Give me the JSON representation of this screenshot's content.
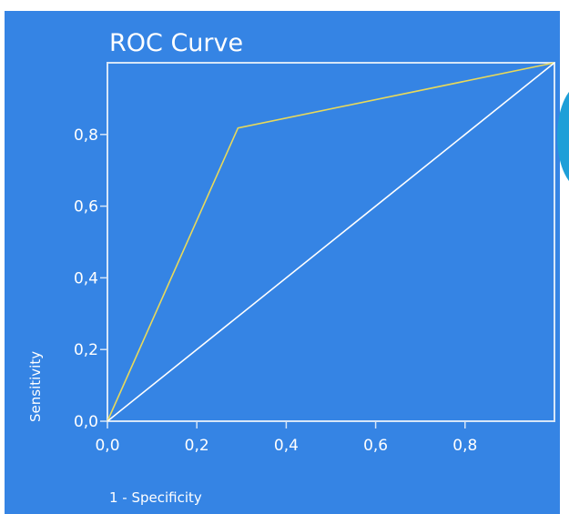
{
  "chart_data": {
    "type": "line",
    "title": "ROC Curve",
    "xlabel": "1 - Specificity",
    "ylabel": "Sensitivity",
    "xlim": [
      0,
      1
    ],
    "ylim": [
      0,
      1
    ],
    "x_ticks": [
      0,
      0.2,
      0.4,
      0.6,
      0.8
    ],
    "y_ticks": [
      0,
      0.2,
      0.4,
      0.6,
      0.8
    ],
    "x_tick_labels": [
      "0,0",
      "0,2",
      "0,4",
      "0,6",
      "0,8"
    ],
    "y_tick_labels": [
      "0,0",
      "0,2",
      "0,4",
      "0,6",
      "0,8"
    ],
    "grid": false,
    "series": [
      {
        "color": "#e8d95a",
        "x": [
          0,
          0.292,
          1
        ],
        "y": [
          0,
          0.818,
          1
        ]
      },
      {
        "color": "#ffffff",
        "x": [
          0,
          1
        ],
        "y": [
          0,
          1
        ]
      }
    ],
    "colors": {
      "background": "#3584e4",
      "frame": "#d6e6f8",
      "accent_blob": "#1e9fd8"
    }
  }
}
